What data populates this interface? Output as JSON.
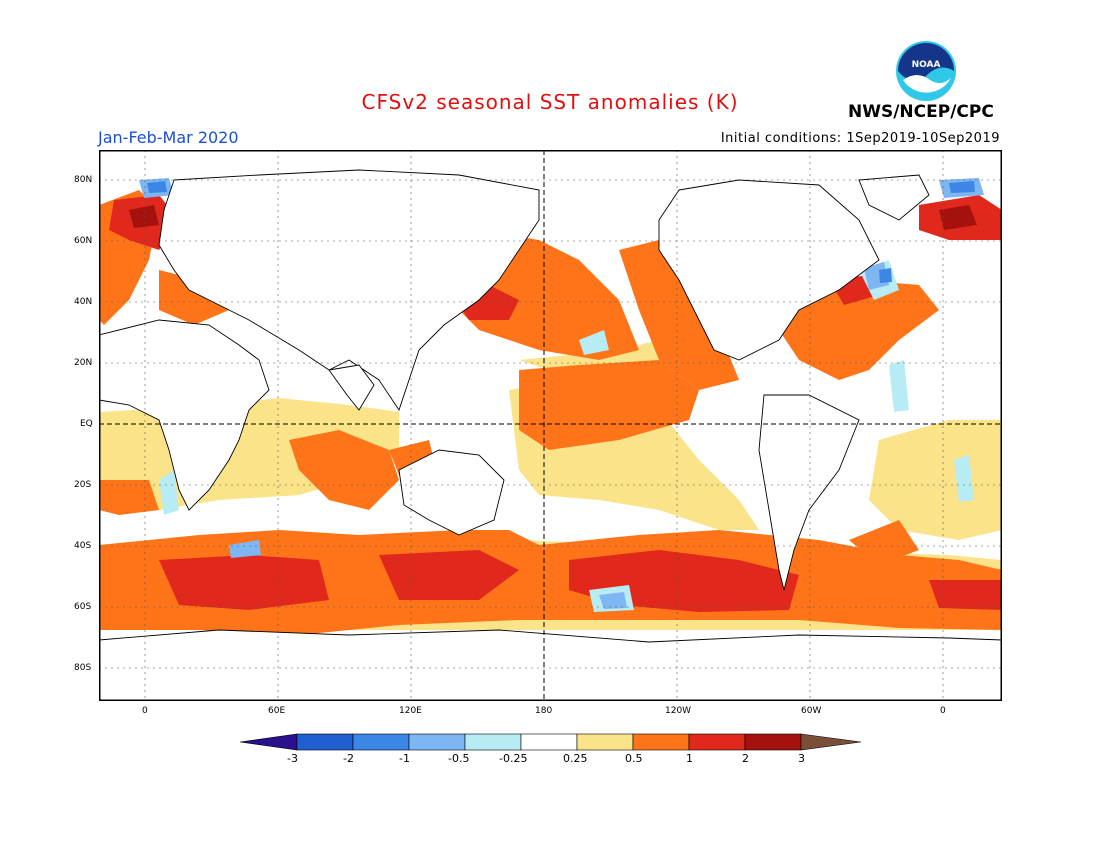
{
  "header": {
    "title": "CFSv2 seasonal SST anomalies (K)",
    "period": "Jan-Feb-Mar 2020",
    "initial_conditions": "Initial conditions: 1Sep2019-10Sep2019",
    "agency": "NWS/NCEP/CPC",
    "logo_text": "NOAA"
  },
  "map": {
    "lat_labels": [
      "80N",
      "60N",
      "40N",
      "20N",
      "EQ",
      "20S",
      "40S",
      "60S",
      "80S"
    ],
    "lon_labels": [
      "0",
      "60E",
      "120E",
      "180",
      "120W",
      "60W",
      "0"
    ]
  },
  "colorbar": {
    "labels": [
      "-3",
      "-2",
      "-1",
      "-0.5",
      "-0.25",
      "0.25",
      "0.5",
      "1",
      "2",
      "3"
    ],
    "colors": [
      "#2a0f8f",
      "#1f5fd0",
      "#3c86e6",
      "#7db6f2",
      "#b8ecf5",
      "#ffffff",
      "#fbe389",
      "#ff7418",
      "#e0281c",
      "#a5120e",
      "#7a4f3a"
    ]
  },
  "colors": {
    "title": "#e01010",
    "period": "#1a4fd6",
    "light_warm": "#fbe389",
    "warm": "#ff7418",
    "hot": "#e0281c",
    "very_hot": "#a5120e",
    "cool": "#b8ecf5",
    "cold": "#7db6f2",
    "colder": "#3c86e6"
  }
}
